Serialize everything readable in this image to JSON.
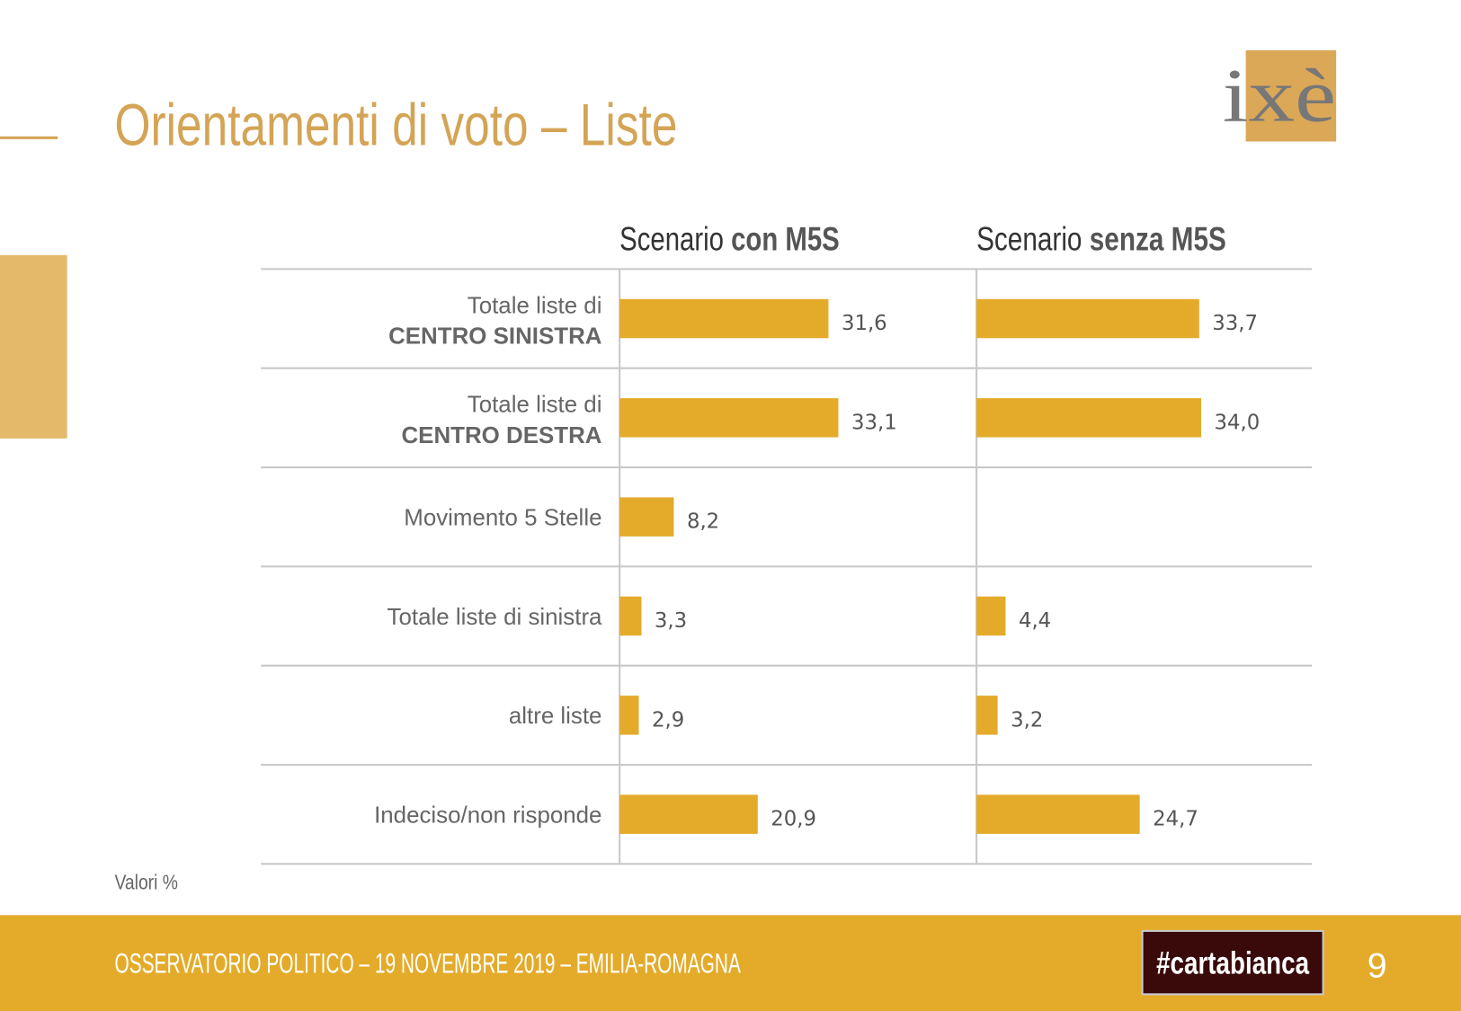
{
  "chart_data": {
    "type": "bar",
    "title": "Orientamenti di voto – Liste",
    "logo": "ixè",
    "categories": [
      [
        "Totale liste di",
        "CENTRO SINISTRA"
      ],
      [
        "Totale liste di",
        "CENTRO DESTRA"
      ],
      "Movimento 5 Stelle",
      "Totale liste di sinistra",
      "altre liste",
      "Indeciso/non risponde"
    ],
    "series": [
      {
        "name_prefix": "Scenario",
        "name": "con M5S",
        "color": "#e4ab2a",
        "values": [
          31.6,
          33.1,
          8.2,
          3.3,
          2.9,
          20.9
        ],
        "value_labels": [
          "31,6",
          "33,1",
          "8,2",
          "3,3",
          "2,9",
          "20,9"
        ]
      },
      {
        "name_prefix": "Scenario",
        "name": "senza M5S",
        "color": "#e4ab2a",
        "values": [
          33.7,
          34.0,
          null,
          4.4,
          3.2,
          24.7
        ],
        "value_labels": [
          "33,7",
          "34,0",
          null,
          "4,4",
          "3,2",
          "24,7"
        ]
      }
    ],
    "xlim": [
      0,
      54
    ],
    "note": "Valori %",
    "footer": "OSSERVATORIO POLITICO – 19 NOVEMBRE 2019 – EMILIA-ROMAGNA",
    "badge": "#cartabianca",
    "page_number": "9"
  }
}
